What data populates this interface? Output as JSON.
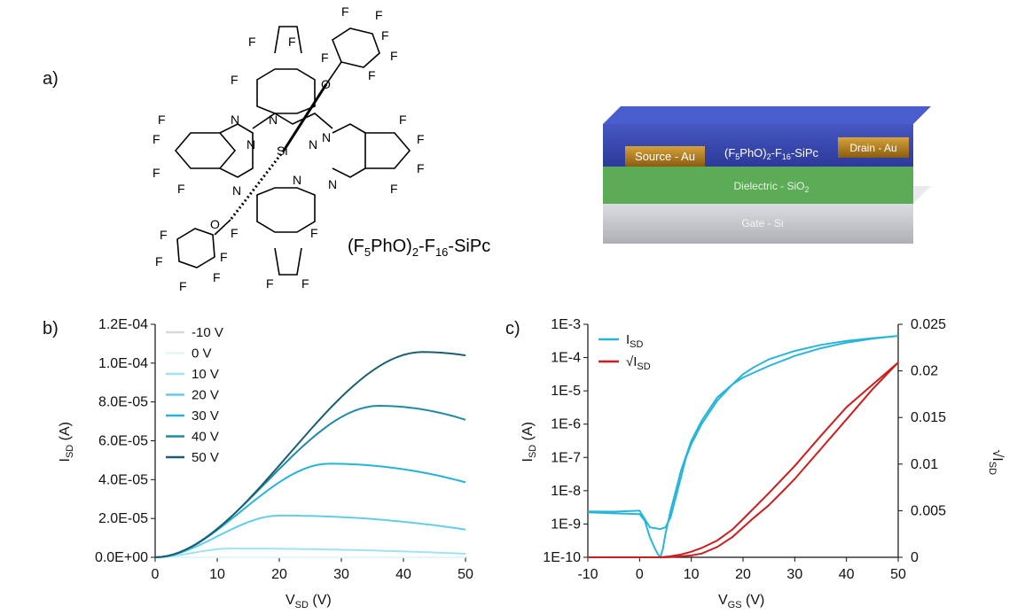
{
  "panel_labels": {
    "a": "a)",
    "b": "b)",
    "c": "c)"
  },
  "molecule": {
    "name_main": "(F",
    "name_sub1": "5",
    "name_mid": "PhO)",
    "name_sub2": "2",
    "name_mid2": "-F",
    "name_sub3": "16",
    "name_end": "-SiPc",
    "atom_F": "F",
    "atom_N": "N",
    "atom_O": "O",
    "atom_Si": "Si"
  },
  "device": {
    "source": "Source - Au",
    "drain": "Drain - Au",
    "semiconductor": "(F5PhO)2-F16-SiPc",
    "semi_a": "(F",
    "semi_s1": "5",
    "semi_b": "PhO)",
    "semi_s2": "2",
    "semi_c": "-F",
    "semi_s3": "16",
    "semi_d": "-SiPc",
    "dielectric_a": "Dielectric - SiO",
    "dielectric_s": "2",
    "gate": "Gate - Si",
    "colors": {
      "semiconductor": "#3f4db5",
      "dielectric": "#5cab56",
      "gate": "#c9cbcf",
      "electrode": "#b07a18"
    }
  },
  "chart_data": [
    {
      "type": "line",
      "panel": "b",
      "xlabel_main": "V",
      "xlabel_sub": "SD",
      "xlabel_unit": " (V)",
      "ylabel_main": "I",
      "ylabel_sub": "SD",
      "ylabel_unit": " (A)",
      "xlim": [
        0,
        50
      ],
      "ylim": [
        0,
        0.00012
      ],
      "x_ticks": [
        "0",
        "10",
        "20",
        "30",
        "40",
        "50"
      ],
      "y_ticks": [
        "0.0E+00",
        "2.0E-05",
        "4.0E-05",
        "6.0E-05",
        "8.0E-05",
        "1.0E-04",
        "1.2E-04"
      ],
      "legend_position": "top-left",
      "x": [
        0,
        1,
        2,
        3,
        4,
        5,
        6,
        7,
        8,
        9,
        10,
        11,
        12,
        13,
        14,
        15,
        16,
        17,
        18,
        19,
        20,
        21,
        22,
        23,
        24,
        25,
        26,
        27,
        28,
        29,
        30,
        31,
        32,
        33,
        34,
        35,
        36,
        37,
        38,
        39,
        40,
        41,
        42,
        43,
        44,
        45,
        46,
        47,
        48,
        49,
        50
      ],
      "series": [
        {
          "name": "-10 V",
          "color": "#d8d8d8",
          "params": [
            0,
            1,
            0
          ]
        },
        {
          "name": "0 V",
          "color": "#e3f6fb",
          "params": [
            0,
            1,
            0
          ]
        },
        {
          "name": "10 V",
          "color": "#9fe2f2",
          "params": [
            4.5e-06,
            12,
            1.8e-06
          ]
        },
        {
          "name": "20 V",
          "color": "#62cde9",
          "params": [
            2.15e-05,
            20,
            1.43e-05
          ]
        },
        {
          "name": "30 V",
          "color": "#27b3d6",
          "params": [
            4.82e-05,
            28,
            3.86e-05
          ]
        },
        {
          "name": "40 V",
          "color": "#1f8aa6",
          "params": [
            7.8e-05,
            36,
            7.08e-05
          ]
        },
        {
          "name": "50 V",
          "color": "#195e72",
          "params": [
            0.0001057,
            43,
            0.000104
          ]
        }
      ]
    },
    {
      "type": "line",
      "panel": "c",
      "xlabel_main": "V",
      "xlabel_sub": "GS",
      "xlabel_unit": " (V)",
      "ylabel_main": "I",
      "ylabel_sub": "SD",
      "ylabel_unit": " (A)",
      "y2label_main": "√I",
      "y2label_sub": "SD",
      "xlim": [
        -10,
        50
      ],
      "ylim_log": [
        -10,
        -3
      ],
      "y2lim": [
        0,
        0.025
      ],
      "x_ticks": [
        "-10",
        "0",
        "10",
        "20",
        "30",
        "40",
        "50"
      ],
      "y_ticks": [
        "1E-10",
        "1E-9",
        "1E-8",
        "1E-7",
        "1E-6",
        "1E-5",
        "1E-4",
        "1E-3"
      ],
      "y2_ticks": [
        "0",
        "0.005",
        "0.01",
        "0.015",
        "0.02",
        "0.025"
      ],
      "legend_position": "top-left",
      "legend": [
        {
          "main": "I",
          "sub": "SD",
          "color": "#29b5d8"
        },
        {
          "main": "√I",
          "sub": "SD",
          "color": "#cc1e1e"
        }
      ],
      "series": [
        {
          "name": "ISD forward",
          "axis": "left",
          "color": "#29b5d8",
          "x": [
            -10,
            -5,
            0,
            1,
            2,
            3,
            3.5,
            4,
            4.5,
            5,
            6,
            7,
            8,
            10,
            12,
            15,
            18,
            20,
            25,
            30,
            35,
            40,
            45,
            50
          ],
          "log_y": [
            -8.65,
            -8.68,
            -8.7,
            -8.9,
            -9.4,
            -9.75,
            -9.9,
            -10.0,
            -9.75,
            -9.3,
            -8.6,
            -8.0,
            -7.4,
            -6.5,
            -5.9,
            -5.2,
            -4.8,
            -4.6,
            -4.25,
            -3.95,
            -3.72,
            -3.55,
            -3.43,
            -3.35
          ]
        },
        {
          "name": "ISD reverse",
          "axis": "left",
          "color": "#29b5d8",
          "x": [
            50,
            45,
            40,
            35,
            30,
            25,
            22,
            20,
            18,
            15,
            12,
            10,
            9,
            8,
            7,
            6,
            5,
            4,
            2,
            1,
            0,
            -5,
            -10
          ],
          "log_y": [
            -3.35,
            -3.42,
            -3.5,
            -3.62,
            -3.8,
            -4.05,
            -4.3,
            -4.5,
            -4.8,
            -5.3,
            -6.0,
            -6.6,
            -7.0,
            -7.6,
            -8.2,
            -8.8,
            -9.1,
            -9.15,
            -9.1,
            -8.85,
            -8.6,
            -8.63,
            -8.62
          ]
        },
        {
          "name": "sqrt ISD forward",
          "axis": "right",
          "color": "#cc1e1e",
          "x": [
            -10,
            0,
            4,
            6,
            8,
            10,
            12,
            15,
            18,
            20,
            25,
            30,
            35,
            40,
            45,
            50
          ],
          "y": [
            0,
            0,
            0,
            0.0001,
            0.0003,
            0.0006,
            0.001,
            0.0018,
            0.003,
            0.0041,
            0.0069,
            0.0098,
            0.013,
            0.0161,
            0.0185,
            0.0209
          ]
        },
        {
          "name": "sqrt ISD reverse",
          "axis": "right",
          "color": "#cc1e1e",
          "x": [
            50,
            45,
            40,
            35,
            30,
            27,
            25,
            22,
            20,
            18,
            15,
            12,
            10,
            8,
            5,
            0,
            -10
          ],
          "y": [
            0.0209,
            0.018,
            0.0148,
            0.0116,
            0.0084,
            0.0067,
            0.0056,
            0.0042,
            0.0032,
            0.0022,
            0.0011,
            0.0004,
            0.0002,
            0.0001,
            0,
            0,
            0
          ]
        }
      ]
    }
  ]
}
